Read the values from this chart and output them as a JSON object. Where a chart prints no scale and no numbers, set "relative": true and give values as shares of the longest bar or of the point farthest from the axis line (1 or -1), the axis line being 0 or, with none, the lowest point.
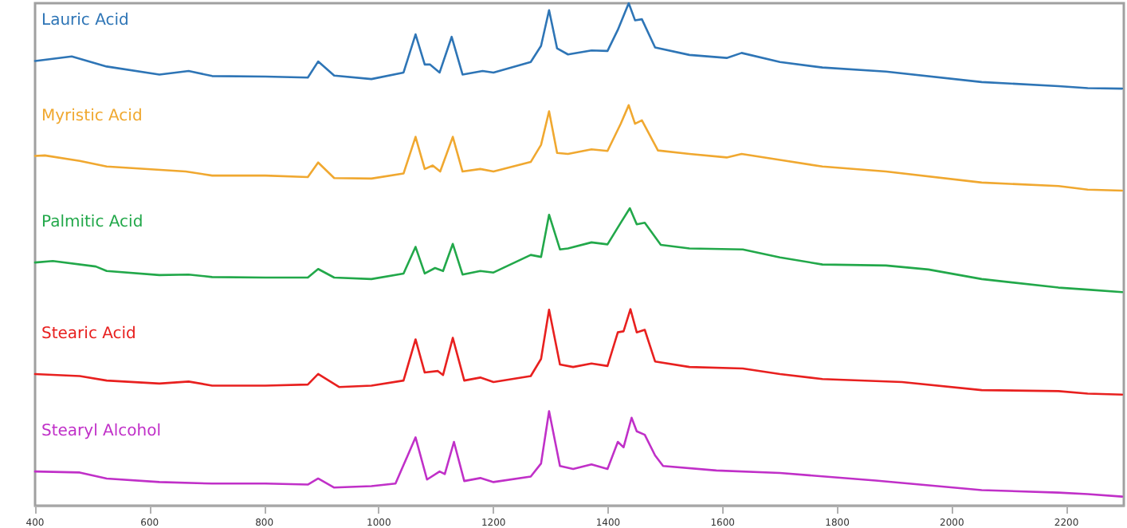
{
  "chart_data": {
    "type": "line",
    "relative": true,
    "xlim": [
      400,
      2300
    ],
    "xticks": [
      400,
      600,
      800,
      1000,
      1200,
      1400,
      1600,
      1800,
      2000,
      2200
    ],
    "grid": false,
    "legend": false,
    "marker": "none",
    "series": [
      {
        "name": "Lauric Acid",
        "color": "#2e75b6",
        "x": [
          400,
          464,
          525,
          617,
          668,
          709,
          802,
          876,
          894,
          922,
          987,
          1043,
          1064,
          1080,
          1089,
          1106,
          1127,
          1146,
          1181,
          1200,
          1265,
          1283,
          1297,
          1311,
          1330,
          1371,
          1399,
          1417,
          1436,
          1447,
          1459,
          1482,
          1542,
          1607,
          1633,
          1700,
          1774,
          1885,
          2052,
          2186,
          2237,
          2297
        ],
        "values": [
          0.885,
          0.894,
          0.874,
          0.858,
          0.865,
          0.855,
          0.854,
          0.852,
          0.884,
          0.856,
          0.849,
          0.862,
          0.938,
          0.878,
          0.878,
          0.862,
          0.933,
          0.858,
          0.865,
          0.862,
          0.883,
          0.915,
          0.986,
          0.91,
          0.898,
          0.906,
          0.905,
          0.947,
          1,
          0.966,
          0.968,
          0.912,
          0.897,
          0.891,
          0.901,
          0.883,
          0.872,
          0.864,
          0.843,
          0.835,
          0.831,
          0.83
        ]
      },
      {
        "name": "Myristic Acid",
        "color": "#f0a830",
        "x": [
          400,
          417,
          478,
          525,
          663,
          709,
          802,
          876,
          894,
          922,
          987,
          1043,
          1064,
          1080,
          1094,
          1107,
          1129,
          1146,
          1177,
          1200,
          1265,
          1283,
          1297,
          1311,
          1330,
          1371,
          1399,
          1422,
          1436,
          1447,
          1459,
          1487,
          1542,
          1607,
          1633,
          1700,
          1774,
          1885,
          2052,
          2186,
          2237,
          2297
        ],
        "values": [
          0.696,
          0.697,
          0.686,
          0.675,
          0.665,
          0.657,
          0.657,
          0.654,
          0.683,
          0.652,
          0.651,
          0.661,
          0.734,
          0.67,
          0.677,
          0.665,
          0.734,
          0.665,
          0.67,
          0.665,
          0.684,
          0.718,
          0.785,
          0.702,
          0.7,
          0.709,
          0.706,
          0.76,
          0.797,
          0.76,
          0.767,
          0.707,
          0.7,
          0.693,
          0.7,
          0.688,
          0.675,
          0.665,
          0.643,
          0.636,
          0.629,
          0.627
        ]
      },
      {
        "name": "Palmitic Acid",
        "color": "#22a84a",
        "x": [
          400,
          431,
          506,
          525,
          617,
          668,
          709,
          802,
          876,
          894,
          922,
          987,
          1043,
          1064,
          1080,
          1098,
          1112,
          1129,
          1146,
          1177,
          1200,
          1265,
          1283,
          1297,
          1316,
          1330,
          1371,
          1399,
          1422,
          1438,
          1450,
          1464,
          1492,
          1542,
          1635,
          1700,
          1774,
          1885,
          1959,
          2052,
          2186,
          2237,
          2297
        ],
        "values": [
          0.484,
          0.487,
          0.476,
          0.467,
          0.459,
          0.46,
          0.455,
          0.454,
          0.454,
          0.471,
          0.454,
          0.451,
          0.462,
          0.515,
          0.462,
          0.473,
          0.467,
          0.521,
          0.46,
          0.467,
          0.464,
          0.499,
          0.495,
          0.579,
          0.51,
          0.512,
          0.524,
          0.52,
          0.563,
          0.592,
          0.56,
          0.563,
          0.519,
          0.512,
          0.51,
          0.494,
          0.48,
          0.478,
          0.47,
          0.451,
          0.434,
          0.43,
          0.425
        ]
      },
      {
        "name": "Stearic Acid",
        "color": "#e8201f",
        "x": [
          400,
          478,
          525,
          617,
          668,
          709,
          802,
          876,
          894,
          931,
          987,
          1043,
          1064,
          1080,
          1103,
          1112,
          1129,
          1149,
          1177,
          1200,
          1265,
          1283,
          1297,
          1316,
          1339,
          1371,
          1399,
          1417,
          1427,
          1439,
          1450,
          1464,
          1482,
          1542,
          1635,
          1700,
          1774,
          1913,
          2052,
          2186,
          2237,
          2297
        ],
        "values": [
          0.262,
          0.258,
          0.249,
          0.243,
          0.247,
          0.239,
          0.239,
          0.241,
          0.262,
          0.236,
          0.239,
          0.249,
          0.331,
          0.265,
          0.268,
          0.26,
          0.334,
          0.249,
          0.255,
          0.246,
          0.258,
          0.292,
          0.39,
          0.281,
          0.276,
          0.283,
          0.278,
          0.345,
          0.347,
          0.391,
          0.345,
          0.35,
          0.287,
          0.276,
          0.273,
          0.262,
          0.252,
          0.246,
          0.23,
          0.228,
          0.223,
          0.221
        ]
      },
      {
        "name": "Stearyl Alcohol",
        "color": "#c030c8",
        "x": [
          400,
          478,
          525,
          617,
          709,
          802,
          876,
          894,
          922,
          987,
          1029,
          1064,
          1084,
          1106,
          1115,
          1131,
          1149,
          1177,
          1200,
          1265,
          1283,
          1297,
          1316,
          1339,
          1371,
          1399,
          1417,
          1427,
          1441,
          1450,
          1464,
          1482,
          1496,
          1589,
          1700,
          1867,
          2052,
          2186,
          2237,
          2297
        ],
        "values": [
          0.068,
          0.066,
          0.054,
          0.047,
          0.044,
          0.044,
          0.042,
          0.054,
          0.036,
          0.039,
          0.044,
          0.136,
          0.052,
          0.068,
          0.063,
          0.127,
          0.049,
          0.055,
          0.047,
          0.058,
          0.084,
          0.188,
          0.079,
          0.073,
          0.082,
          0.073,
          0.127,
          0.116,
          0.175,
          0.148,
          0.141,
          0.1,
          0.079,
          0.07,
          0.065,
          0.05,
          0.031,
          0.026,
          0.023,
          0.018
        ]
      }
    ]
  }
}
